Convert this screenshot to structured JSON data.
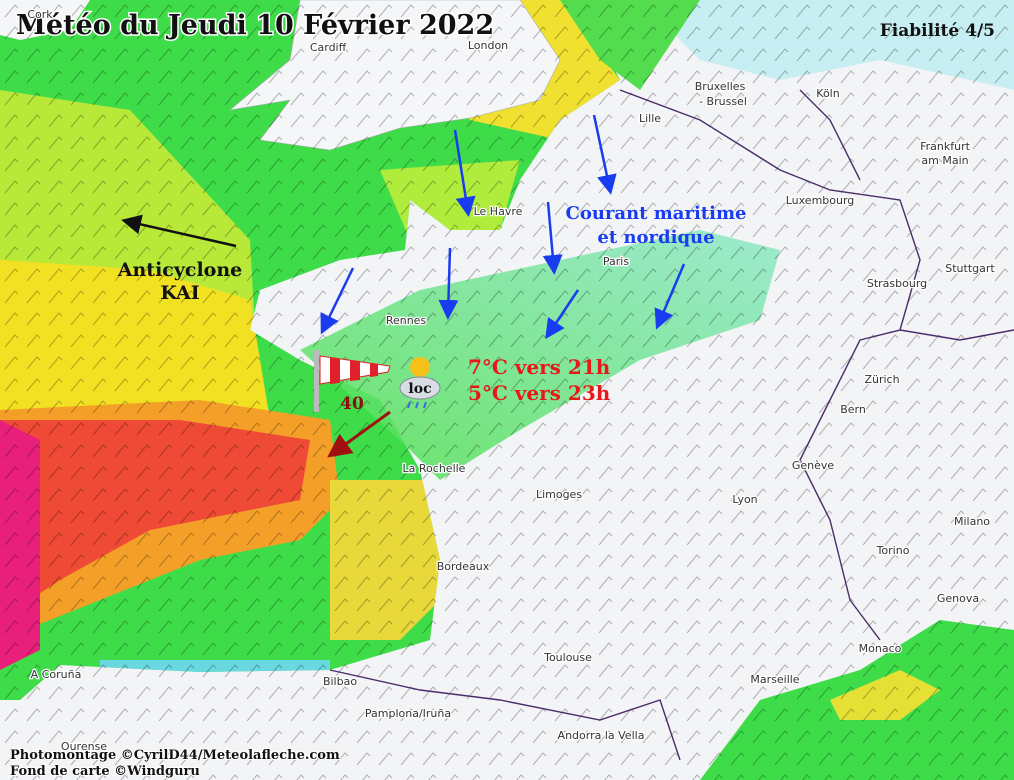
{
  "header": {
    "title": "Météo du Jeudi 10 Février 2022",
    "reliability": "Fiabilité 4/5"
  },
  "annotations": {
    "anticyclone": [
      "Anticyclone",
      "KAI"
    ],
    "current": [
      "Courant maritime",
      "et nordique"
    ],
    "temperatures": [
      "7°C vers 21h",
      "5°C vers 23h"
    ],
    "wind": "40",
    "location": "loc"
  },
  "cities": [
    "Cork",
    "Cardiff",
    "London",
    "Bruxelles",
    "- Brussel",
    "Köln",
    "Frankfurt",
    "am Main",
    "Lille",
    "Le Havre",
    "Luxembourg",
    "Paris",
    "Stuttgart",
    "Strasbourg",
    "Rennes",
    "Zürich",
    "Bern",
    "La Rochelle",
    "Limoges",
    "Genève",
    "Lyon",
    "Milano",
    "Torino",
    "Bordeaux",
    "Genova",
    "Toulouse",
    "Monaco",
    "Marseille",
    "A Coruña",
    "Bilbao",
    "Pamplona/Iruña",
    "Ourense",
    "Andorra la Vella"
  ],
  "credits": [
    "Photomontage ©CyrilD44/Meteolafleche.com",
    "Fond de carte ©Windguru"
  ]
}
